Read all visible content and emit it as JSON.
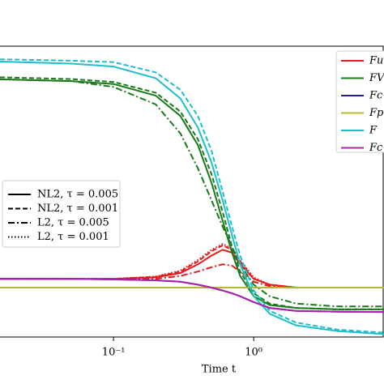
{
  "chart_data": {
    "type": "line",
    "xlabel": "Time t",
    "xscale": "log",
    "xlim": [
      0.0155,
      8.5
    ],
    "xticks": [
      {
        "value": 0.1,
        "label": "10⁻¹"
      },
      {
        "value": 1,
        "label": "10⁰"
      }
    ],
    "ylim": [
      0,
      1
    ],
    "x": [
      0.0155,
      0.05,
      0.1,
      0.2,
      0.3,
      0.4,
      0.5,
      0.6,
      0.7,
      0.8,
      1.0,
      1.3,
      2,
      4,
      8.5
    ],
    "series": [
      {
        "name": "Fu",
        "color": "#e41a1c",
        "values": [
          0.2,
          0.2,
          0.2,
          0.205,
          0.22,
          0.25,
          0.28,
          0.3,
          0.29,
          0.25,
          0.2,
          0.18,
          0.17,
          0.17,
          0.17
        ],
        "variants": [
          {
            "dash": "dashed",
            "values": [
              0.2,
              0.2,
              0.2,
              0.207,
              0.225,
              0.26,
              0.295,
              0.315,
              0.3,
              0.26,
              0.2,
              0.18,
              0.17,
              0.17,
              0.17
            ]
          },
          {
            "dash": "dashdot",
            "values": [
              0.2,
              0.2,
              0.2,
              0.2,
              0.21,
              0.225,
              0.24,
              0.25,
              0.245,
              0.225,
              0.19,
              0.175,
              0.17,
              0.17,
              0.17
            ]
          },
          {
            "dash": "dotted",
            "values": [
              0.2,
              0.2,
              0.2,
              0.208,
              0.228,
              0.265,
              0.3,
              0.32,
              0.305,
              0.265,
              0.205,
              0.18,
              0.17,
              0.17,
              0.17
            ]
          }
        ]
      },
      {
        "name": "FV",
        "color": "#1a7a1a",
        "values": [
          0.886,
          0.88,
          0.87,
          0.83,
          0.76,
          0.66,
          0.53,
          0.4,
          0.29,
          0.21,
          0.14,
          0.11,
          0.1,
          0.095,
          0.095
        ],
        "variants": [
          {
            "dash": "dashed",
            "values": [
              0.893,
              0.887,
              0.877,
              0.84,
              0.775,
              0.68,
              0.56,
              0.43,
              0.31,
              0.225,
              0.15,
              0.115,
              0.1,
              0.095,
              0.095
            ]
          },
          {
            "dash": "dashdot",
            "values": [
              0.886,
              0.88,
              0.86,
              0.8,
              0.7,
              0.58,
              0.47,
              0.38,
              0.31,
              0.25,
              0.18,
              0.14,
              0.115,
              0.105,
              0.105
            ]
          }
        ]
      },
      {
        "name": "Fc−",
        "color": "#1f1f99",
        "values": [
          0.2,
          0.2,
          0.198,
          0.195,
          0.19,
          0.18,
          0.17,
          0.16,
          0.15,
          0.14,
          0.12,
          0.1,
          0.09,
          0.087,
          0.086
        ],
        "variants": []
      },
      {
        "name": "Fp",
        "color": "#b5b82a",
        "values": [
          0.17,
          0.17,
          0.17,
          0.17,
          0.17,
          0.17,
          0.17,
          0.17,
          0.17,
          0.17,
          0.17,
          0.17,
          0.17,
          0.17,
          0.17
        ],
        "variants": []
      },
      {
        "name": "F",
        "color": "#1fbfca",
        "values": [
          0.947,
          0.94,
          0.93,
          0.89,
          0.82,
          0.72,
          0.6,
          0.47,
          0.35,
          0.25,
          0.14,
          0.08,
          0.04,
          0.02,
          0.01
        ],
        "variants": [
          {
            "dash": "dashed",
            "values": [
              0.955,
              0.95,
              0.945,
              0.91,
              0.85,
              0.76,
              0.64,
              0.5,
              0.38,
              0.28,
              0.16,
              0.09,
              0.05,
              0.025,
              0.015
            ]
          }
        ]
      },
      {
        "name": "Fc−",
        "color": "#b020b0",
        "values": [
          0.2,
          0.2,
          0.198,
          0.195,
          0.19,
          0.18,
          0.17,
          0.16,
          0.15,
          0.14,
          0.12,
          0.1,
          0.09,
          0.087,
          0.086
        ],
        "variants": []
      }
    ],
    "line_styles": [
      {
        "label": "NL2, τ = 0.005",
        "dash": "solid"
      },
      {
        "label": "NL2, τ = 0.001",
        "dash": "dashed"
      },
      {
        "label": "L2, τ = 0.005",
        "dash": "dashdot"
      },
      {
        "label": "L2, τ = 0.001",
        "dash": "dotted"
      }
    ]
  }
}
